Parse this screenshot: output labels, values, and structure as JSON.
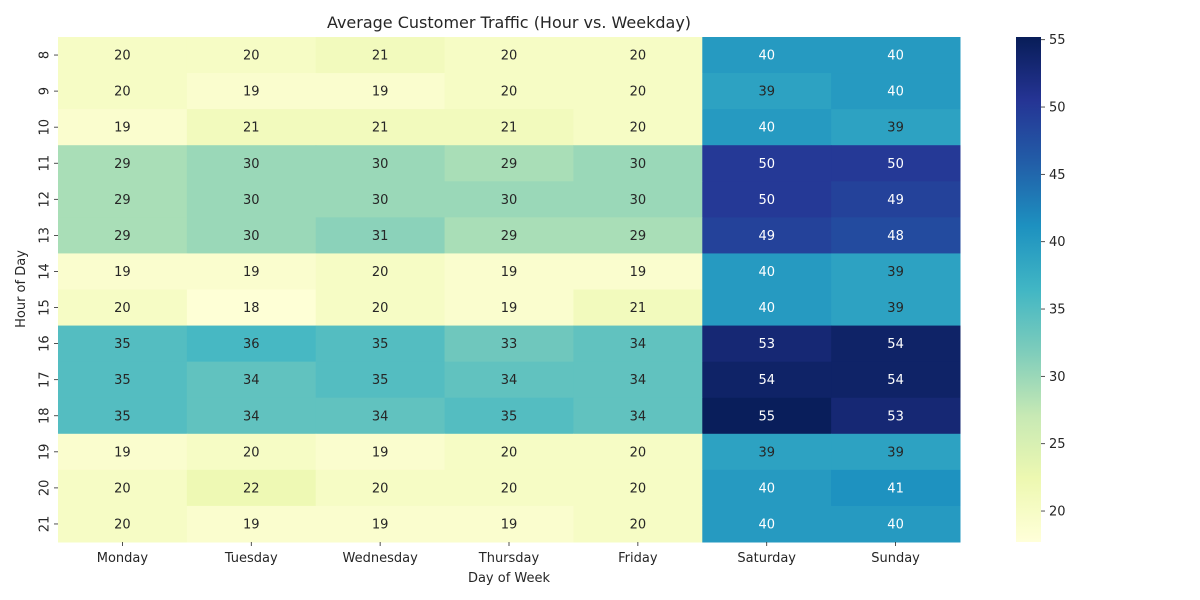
{
  "chart_data": {
    "type": "heatmap",
    "title": "Average Customer Traffic (Hour vs. Weekday)",
    "xlabel": "Day of Week",
    "ylabel": "Hour of Day",
    "x_categories": [
      "Monday",
      "Tuesday",
      "Wednesday",
      "Thursday",
      "Friday",
      "Saturday",
      "Sunday"
    ],
    "y_categories": [
      "8",
      "9",
      "10",
      "11",
      "12",
      "13",
      "14",
      "15",
      "16",
      "17",
      "18",
      "19",
      "20",
      "21"
    ],
    "values": [
      [
        20,
        20,
        21,
        20,
        20,
        40,
        40
      ],
      [
        20,
        19,
        19,
        20,
        20,
        39,
        40
      ],
      [
        19,
        21,
        21,
        21,
        20,
        40,
        39
      ],
      [
        29,
        30,
        30,
        29,
        30,
        50,
        50
      ],
      [
        29,
        30,
        30,
        30,
        30,
        50,
        49
      ],
      [
        29,
        30,
        31,
        29,
        29,
        49,
        48
      ],
      [
        19,
        19,
        20,
        19,
        19,
        40,
        39
      ],
      [
        20,
        18,
        20,
        19,
        21,
        40,
        39
      ],
      [
        35,
        36,
        35,
        33,
        34,
        53,
        54
      ],
      [
        35,
        34,
        35,
        34,
        34,
        54,
        54
      ],
      [
        35,
        34,
        34,
        35,
        34,
        55,
        53
      ],
      [
        19,
        20,
        19,
        20,
        20,
        39,
        39
      ],
      [
        20,
        22,
        20,
        20,
        20,
        40,
        41
      ],
      [
        20,
        19,
        19,
        19,
        20,
        40,
        40
      ]
    ],
    "value_range": [
      17.7,
      55.2
    ],
    "colorbar_ticks": [
      20,
      25,
      30,
      35,
      40,
      45,
      50,
      55
    ],
    "colormap": "YlGnBu",
    "colormap_stops": [
      "#ffffd9",
      "#edf8b1",
      "#c7e9b4",
      "#7fcdbb",
      "#41b6c4",
      "#1d91c0",
      "#225ea8",
      "#253494",
      "#081d58"
    ],
    "annotations": true
  }
}
